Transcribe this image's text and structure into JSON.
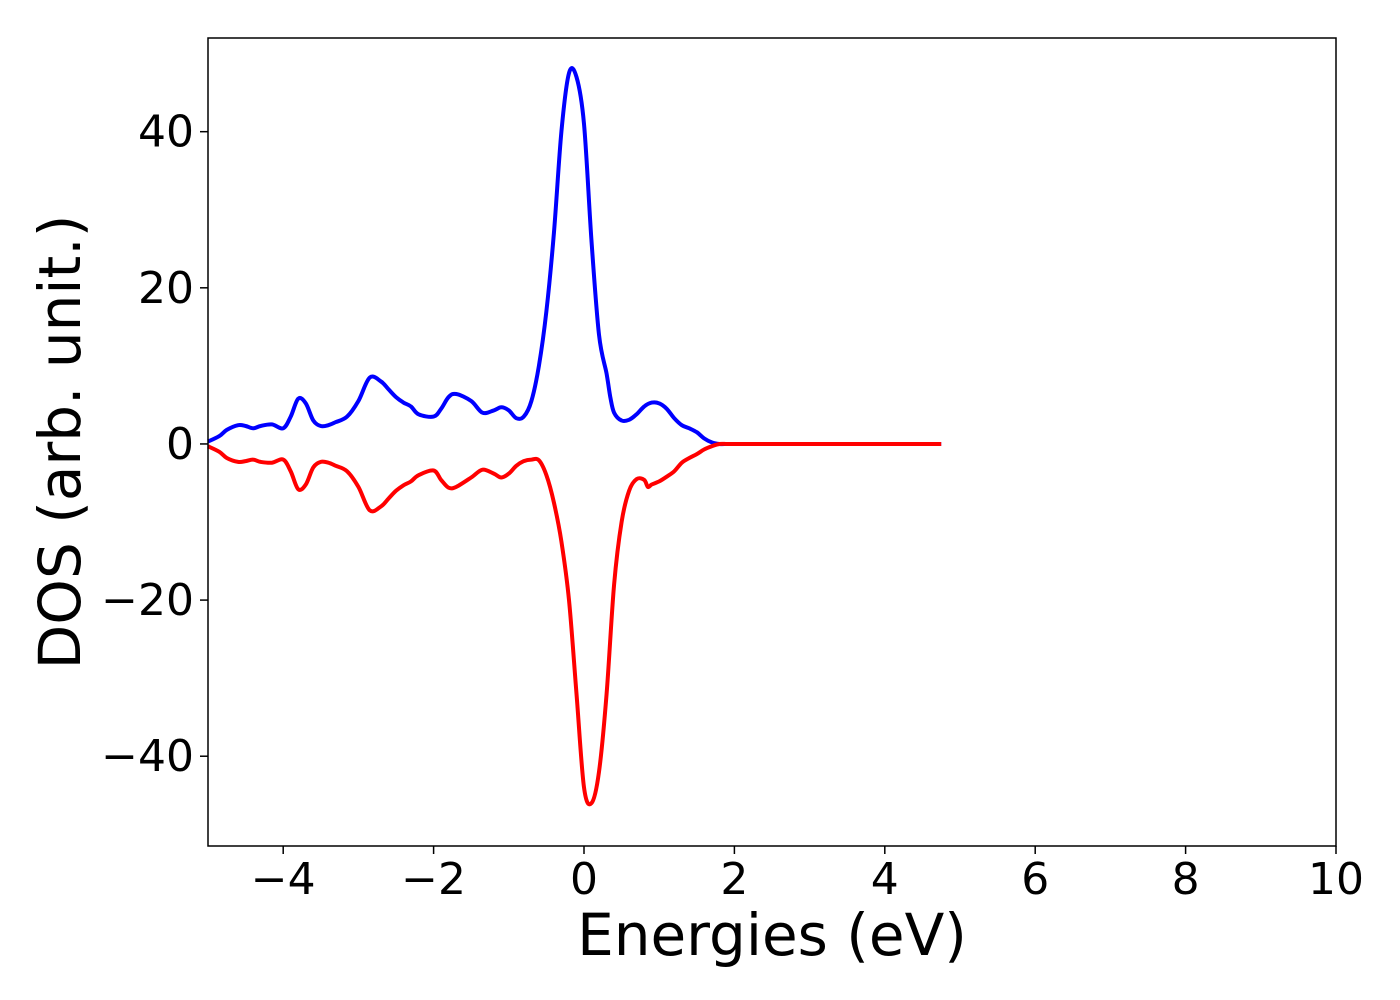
{
  "chart_data": {
    "type": "line",
    "title": "",
    "xlabel": "Energies (eV)",
    "ylabel": "DOS (arb. unit.)",
    "xlim": [
      -5,
      10
    ],
    "ylim": [
      -51.5,
      52
    ],
    "xticks": [
      -4,
      -2,
      0,
      2,
      4,
      6,
      8,
      10
    ],
    "xtick_labels": [
      "−4",
      "−2",
      "0",
      "2",
      "4",
      "6",
      "8",
      "10"
    ],
    "yticks": [
      -40,
      -20,
      0,
      20,
      40
    ],
    "ytick_labels": [
      "−40",
      "−20",
      "0",
      "20",
      "40"
    ],
    "grid": false,
    "legend": "none",
    "series": [
      {
        "color": "#0000ff",
        "x": [
          -5.0,
          -4.85,
          -4.75,
          -4.6,
          -4.5,
          -4.4,
          -4.3,
          -4.15,
          -4.0,
          -3.9,
          -3.8,
          -3.7,
          -3.6,
          -3.5,
          -3.4,
          -3.3,
          -3.15,
          -3.0,
          -2.85,
          -2.7,
          -2.6,
          -2.5,
          -2.4,
          -2.3,
          -2.2,
          -2.0,
          -1.9,
          -1.8,
          -1.7,
          -1.5,
          -1.35,
          -1.2,
          -1.1,
          -1.0,
          -0.9,
          -0.8,
          -0.7,
          -0.6,
          -0.5,
          -0.4,
          -0.3,
          -0.2,
          -0.1,
          0.0,
          0.1,
          0.2,
          0.3,
          0.35,
          0.4,
          0.5,
          0.6,
          0.7,
          0.8,
          0.9,
          1.0,
          1.1,
          1.2,
          1.3,
          1.4,
          1.5,
          1.6,
          1.7,
          1.8,
          1.9,
          2.0,
          2.1,
          2.2,
          2.3,
          2.4,
          2.5,
          2.6,
          2.7,
          2.8,
          3.0,
          3.5,
          4.0,
          4.5,
          4.75
        ],
        "y": [
          0.3,
          1.0,
          1.8,
          2.4,
          2.3,
          2.0,
          2.3,
          2.5,
          2.0,
          3.5,
          5.8,
          5.2,
          3.0,
          2.3,
          2.4,
          2.8,
          3.5,
          5.5,
          8.5,
          8.0,
          7.0,
          6.0,
          5.3,
          4.8,
          3.8,
          3.5,
          4.5,
          6.0,
          6.4,
          5.5,
          4.0,
          4.3,
          4.7,
          4.3,
          3.3,
          3.5,
          5.5,
          10.0,
          17.0,
          27.0,
          40.0,
          47.5,
          47.0,
          41.0,
          26.0,
          14.0,
          9.0,
          6.0,
          4.0,
          3.0,
          3.1,
          3.8,
          4.8,
          5.3,
          5.2,
          4.5,
          3.3,
          2.4,
          2.0,
          1.5,
          0.7,
          0.2,
          0.0,
          0.0,
          0.0,
          0.0,
          0.0,
          0.0,
          0.0,
          0.0,
          0.0,
          0.0,
          0.0,
          0.0,
          0.0,
          0.0,
          0.0,
          0.0
        ]
      },
      {
        "color": "#ff0000",
        "x": [
          -5.0,
          -4.85,
          -4.75,
          -4.6,
          -4.5,
          -4.4,
          -4.3,
          -4.15,
          -4.0,
          -3.9,
          -3.8,
          -3.7,
          -3.6,
          -3.5,
          -3.4,
          -3.3,
          -3.15,
          -3.0,
          -2.85,
          -2.7,
          -2.6,
          -2.5,
          -2.4,
          -2.3,
          -2.2,
          -2.0,
          -1.9,
          -1.8,
          -1.7,
          -1.5,
          -1.35,
          -1.2,
          -1.1,
          -1.0,
          -0.9,
          -0.8,
          -0.7,
          -0.6,
          -0.5,
          -0.4,
          -0.3,
          -0.2,
          -0.1,
          0.0,
          0.1,
          0.2,
          0.3,
          0.4,
          0.5,
          0.6,
          0.7,
          0.8,
          0.85,
          0.9,
          1.0,
          1.1,
          1.2,
          1.3,
          1.4,
          1.5,
          1.6,
          1.7,
          1.8,
          1.9,
          2.0,
          2.1,
          2.2,
          2.3,
          2.4,
          2.5,
          2.6,
          2.7,
          2.8,
          3.0,
          3.5,
          4.0,
          4.5,
          4.75
        ],
        "y": [
          -0.3,
          -1.0,
          -1.8,
          -2.3,
          -2.2,
          -2.0,
          -2.3,
          -2.4,
          -2.0,
          -3.5,
          -5.8,
          -5.2,
          -3.0,
          -2.3,
          -2.4,
          -2.8,
          -3.5,
          -5.5,
          -8.5,
          -8.0,
          -7.0,
          -6.0,
          -5.3,
          -4.8,
          -4.0,
          -3.4,
          -4.6,
          -5.6,
          -5.5,
          -4.3,
          -3.3,
          -3.8,
          -4.3,
          -3.8,
          -2.8,
          -2.2,
          -2.0,
          -2.1,
          -4.0,
          -7.5,
          -12.5,
          -20.0,
          -32.0,
          -44.0,
          -46.0,
          -42.0,
          -32.0,
          -18.0,
          -10.0,
          -6.0,
          -4.5,
          -4.6,
          -5.5,
          -5.2,
          -4.8,
          -4.2,
          -3.5,
          -2.4,
          -1.8,
          -1.3,
          -0.7,
          -0.3,
          0.0,
          0.0,
          0.0,
          0.0,
          0.0,
          0.0,
          0.0,
          0.0,
          0.0,
          0.0,
          0.0,
          0.0,
          0.0,
          0.0,
          0.0,
          0.0
        ]
      }
    ]
  }
}
